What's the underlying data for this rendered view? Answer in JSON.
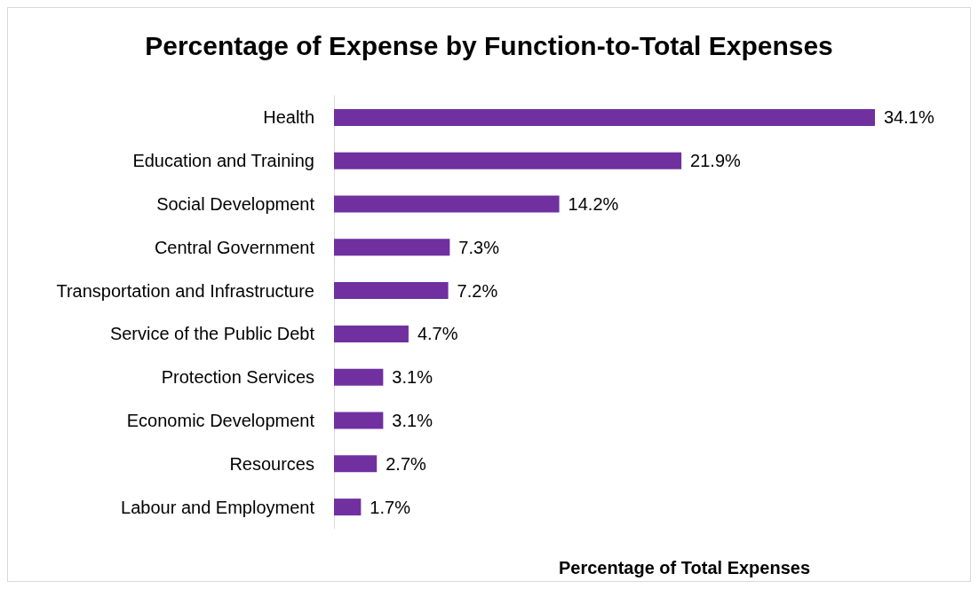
{
  "chart_data": {
    "type": "bar",
    "orientation": "horizontal",
    "title": "Percentage of Expense by Function-to-Total Expenses",
    "xlabel": "Percentage of Total Expenses",
    "categories": [
      "Health",
      "Education and Training",
      "Social Development",
      "Central Government",
      "Transportation and Infrastructure",
      "Service of the Public Debt",
      "Protection Services",
      "Economic Development",
      "Resources",
      "Labour and Employment"
    ],
    "values": [
      34.1,
      21.9,
      14.2,
      7.3,
      7.2,
      4.7,
      3.1,
      3.1,
      2.7,
      1.7
    ],
    "value_labels": [
      "34.1%",
      "21.9%",
      "14.2%",
      "7.3%",
      "7.2%",
      "4.7%",
      "3.1%",
      "3.1%",
      "2.7%",
      "1.7%"
    ],
    "color": "#7030a0",
    "grid": false
  }
}
